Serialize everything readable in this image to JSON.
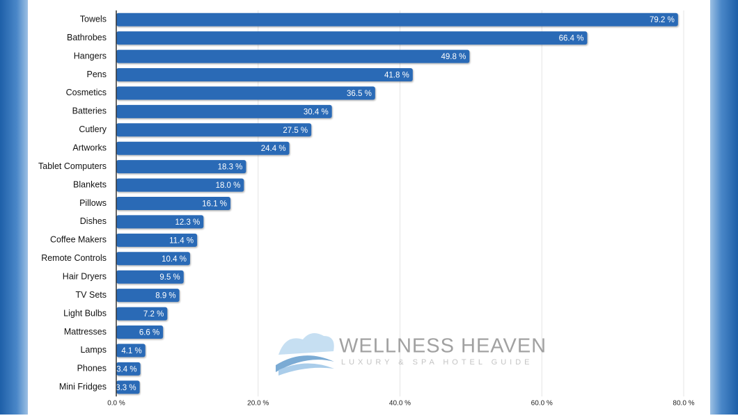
{
  "chart_data": {
    "type": "barh",
    "categories": [
      "Towels",
      "Bathrobes",
      "Hangers",
      "Pens",
      "Cosmetics",
      "Batteries",
      "Cutlery",
      "Artworks",
      "Tablet Computers",
      "Blankets",
      "Pillows",
      "Dishes",
      "Coffee Makers",
      "Remote Controls",
      "Hair Dryers",
      "TV Sets",
      "Light Bulbs",
      "Mattresses",
      "Lamps",
      "Phones",
      "Mini Fridges"
    ],
    "values": [
      79.2,
      66.4,
      49.8,
      41.8,
      36.5,
      30.4,
      27.5,
      24.4,
      18.3,
      18.0,
      16.1,
      12.3,
      11.4,
      10.4,
      9.5,
      8.9,
      7.2,
      6.6,
      4.1,
      3.4,
      3.3
    ],
    "value_labels": [
      "79.2 %",
      "66.4 %",
      "49.8 %",
      "41.8 %",
      "36.5 %",
      "30.4 %",
      "27.5 %",
      "24.4 %",
      "18.3 %",
      "18.0 %",
      "16.1 %",
      "12.3 %",
      "11.4 %",
      "10.4 %",
      "9.5 %",
      "8.9 %",
      "7.2 %",
      "6.6 %",
      "4.1 %",
      "3.4 %",
      "3.3 %"
    ],
    "color": "#2a6ab6",
    "xlim": [
      0,
      80
    ],
    "xticks": [
      {
        "value": 0,
        "label": "0.0 %"
      },
      {
        "value": 20,
        "label": "20.0 %"
      },
      {
        "value": 40,
        "label": "40.0 %"
      },
      {
        "value": 60,
        "label": "60.0 %"
      },
      {
        "value": 80,
        "label": "80.0 %"
      }
    ],
    "grid": true,
    "annotations": [
      "WELLNESS HEAVEN",
      "LUXURY & SPA HOTEL GUIDE"
    ]
  }
}
